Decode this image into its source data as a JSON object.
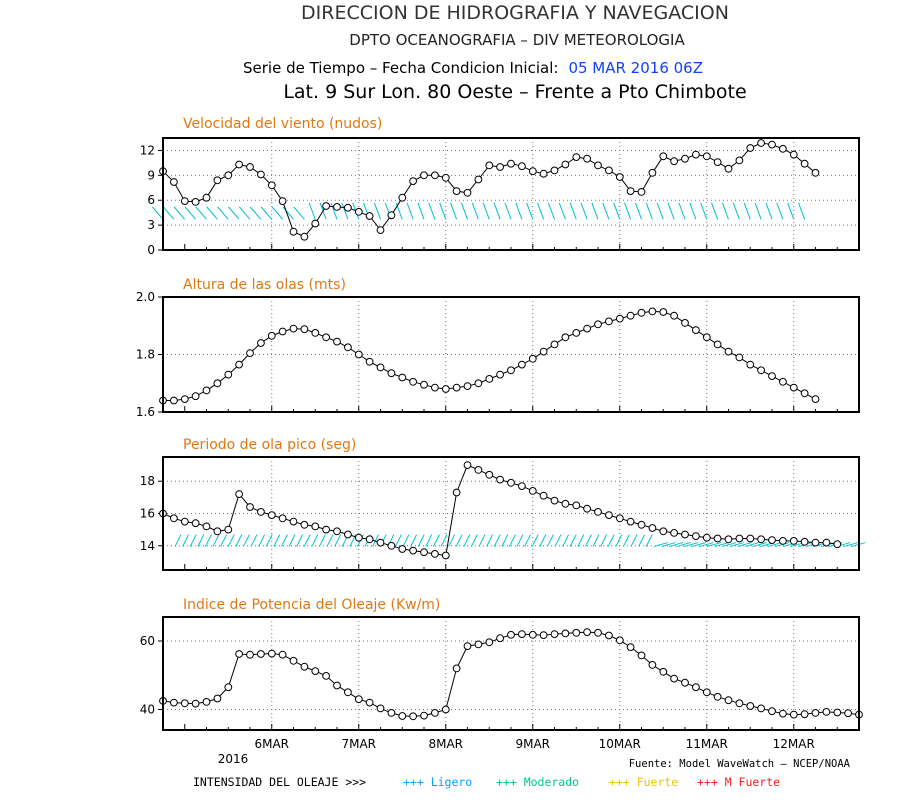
{
  "header": {
    "line1": "DIRECCION DE HIDROGRAFIA Y NAVEGACION",
    "line2": "DPTO OCEANOGRAFIA – DIV METEOROLOGIA",
    "serie_label": "Serie de Tiempo – Fecha Condicion Inicial:",
    "init_date": "05 MAR 2016 06Z",
    "location": "Lat. 9 Sur  Lon. 80 Oeste – Frente a Pto Chimbote"
  },
  "x_axis": {
    "tick_labels": [
      "6MAR",
      "7MAR",
      "8MAR",
      "9MAR",
      "10MAR",
      "11MAR",
      "12MAR"
    ],
    "year_label": "2016"
  },
  "footer": {
    "source": "Fuente: Model WaveWatch – NCEP/NOAA",
    "legend_title": "INTENSIDAD DEL OLEAJE >>>",
    "legend_items": [
      {
        "label": "+++ Ligero",
        "color": "#00a0ff"
      },
      {
        "label": "+++ Moderado",
        "color": "#00c88c"
      },
      {
        "label": "+++ Fuerte",
        "color": "#e6c800"
      },
      {
        "label": "+++ M Fuerte",
        "color": "#ff2020"
      }
    ]
  },
  "colors": {
    "title": "#e07810",
    "init_date": "#1040ff",
    "arrows": "#00c0d0",
    "line": "#000000"
  },
  "chart_data": [
    {
      "type": "line",
      "title": "Velocidad del viento (nudos)",
      "x_start": "2016-03-05 06Z",
      "x_step_hours": 3,
      "ylim": [
        0,
        13.5
      ],
      "yticks": [
        0,
        3,
        6,
        9,
        12
      ],
      "grid": true,
      "series": [
        {
          "values": [
            9.5,
            8.2,
            5.9,
            5.8,
            6.3,
            8.4,
            9.0,
            10.3,
            10.0,
            9.1,
            7.8,
            5.9,
            2.2,
            1.6,
            3.2,
            5.3,
            5.2,
            5.1,
            4.6,
            4.1,
            2.4,
            4.2,
            6.3,
            8.3,
            9.0,
            9.0,
            8.7,
            7.1,
            6.9,
            8.5,
            10.2,
            10.0,
            10.4,
            10.1,
            9.5,
            9.2,
            9.6,
            10.3,
            11.2,
            11.0,
            10.2,
            9.6,
            8.8,
            7.1,
            7.0,
            9.3,
            11.3,
            10.7,
            11.0,
            11.5,
            11.3,
            10.6,
            9.8,
            10.8,
            12.3,
            12.9,
            12.7,
            12.2,
            11.5,
            10.4,
            9.3
          ]
        }
      ],
      "wind_arrows": true
    },
    {
      "type": "line",
      "title": "Altura de las olas (mts)",
      "x_start": "2016-03-05 06Z",
      "x_step_hours": 3,
      "ylim": [
        1.6,
        2.0
      ],
      "yticks": [
        1.6,
        1.8,
        2.0
      ],
      "grid": true,
      "series": [
        {
          "values": [
            1.64,
            1.64,
            1.645,
            1.655,
            1.675,
            1.7,
            1.73,
            1.765,
            1.805,
            1.84,
            1.865,
            1.88,
            1.89,
            1.888,
            1.875,
            1.86,
            1.845,
            1.825,
            1.8,
            1.775,
            1.755,
            1.735,
            1.72,
            1.705,
            1.695,
            1.685,
            1.68,
            1.685,
            1.69,
            1.7,
            1.715,
            1.73,
            1.745,
            1.765,
            1.785,
            1.81,
            1.835,
            1.86,
            1.875,
            1.89,
            1.905,
            1.915,
            1.925,
            1.935,
            1.945,
            1.95,
            1.948,
            1.935,
            1.91,
            1.885,
            1.86,
            1.835,
            1.81,
            1.79,
            1.765,
            1.745,
            1.725,
            1.705,
            1.685,
            1.665,
            1.645
          ]
        }
      ]
    },
    {
      "type": "line",
      "title": "Periodo de ola pico (seg)",
      "x_start": "2016-03-05 06Z",
      "x_step_hours": 3,
      "ylim": [
        12.5,
        19.5
      ],
      "yticks": [
        14,
        16,
        18
      ],
      "grid": true,
      "series": [
        {
          "values": [
            16.0,
            15.7,
            15.5,
            15.4,
            15.2,
            14.9,
            15.0,
            17.2,
            16.4,
            16.1,
            15.9,
            15.7,
            15.5,
            15.3,
            15.2,
            15.0,
            14.9,
            14.7,
            14.5,
            14.4,
            14.2,
            14.0,
            13.8,
            13.7,
            13.6,
            13.5,
            13.4,
            17.3,
            19.0,
            18.7,
            18.4,
            18.1,
            17.9,
            17.7,
            17.4,
            17.1,
            16.8,
            16.6,
            16.5,
            16.3,
            16.1,
            15.9,
            15.7,
            15.5,
            15.3,
            15.1,
            14.9,
            14.8,
            14.7,
            14.6,
            14.5,
            14.45,
            14.4,
            14.45,
            14.45,
            14.4,
            14.35,
            14.3,
            14.3,
            14.25,
            14.2,
            14.2,
            14.1
          ]
        }
      ],
      "wave_arrows": true
    },
    {
      "type": "line",
      "title": "Indice de Potencia del Oleaje (Kw/m)",
      "x_start": "2016-03-05 06Z",
      "x_step_hours": 3,
      "ylim": [
        34,
        67
      ],
      "yticks": [
        40,
        60
      ],
      "grid": true,
      "series": [
        {
          "values": [
            42.5,
            42,
            41.8,
            41.7,
            42.2,
            43.2,
            46.5,
            56.2,
            56.0,
            56.2,
            56.3,
            56.0,
            54.2,
            52.5,
            51.2,
            49.8,
            47.0,
            45.0,
            43.0,
            42.0,
            40.3,
            39.0,
            38.1,
            38.0,
            38.2,
            39.0,
            40.0,
            52.0,
            58.5,
            59.0,
            59.6,
            60.8,
            61.8,
            62.0,
            61.8,
            61.7,
            62.0,
            62.2,
            62.4,
            62.6,
            62.4,
            61.6,
            60.2,
            58.2,
            55.8,
            53.0,
            51.0,
            49.0,
            47.8,
            46.5,
            45.0,
            43.7,
            42.7,
            41.8,
            41.0,
            40.3,
            39.5,
            38.8,
            38.5,
            38.6,
            39.0,
            39.3,
            39.1,
            38.9,
            38.5,
            38.1,
            37.8
          ]
        }
      ]
    }
  ]
}
